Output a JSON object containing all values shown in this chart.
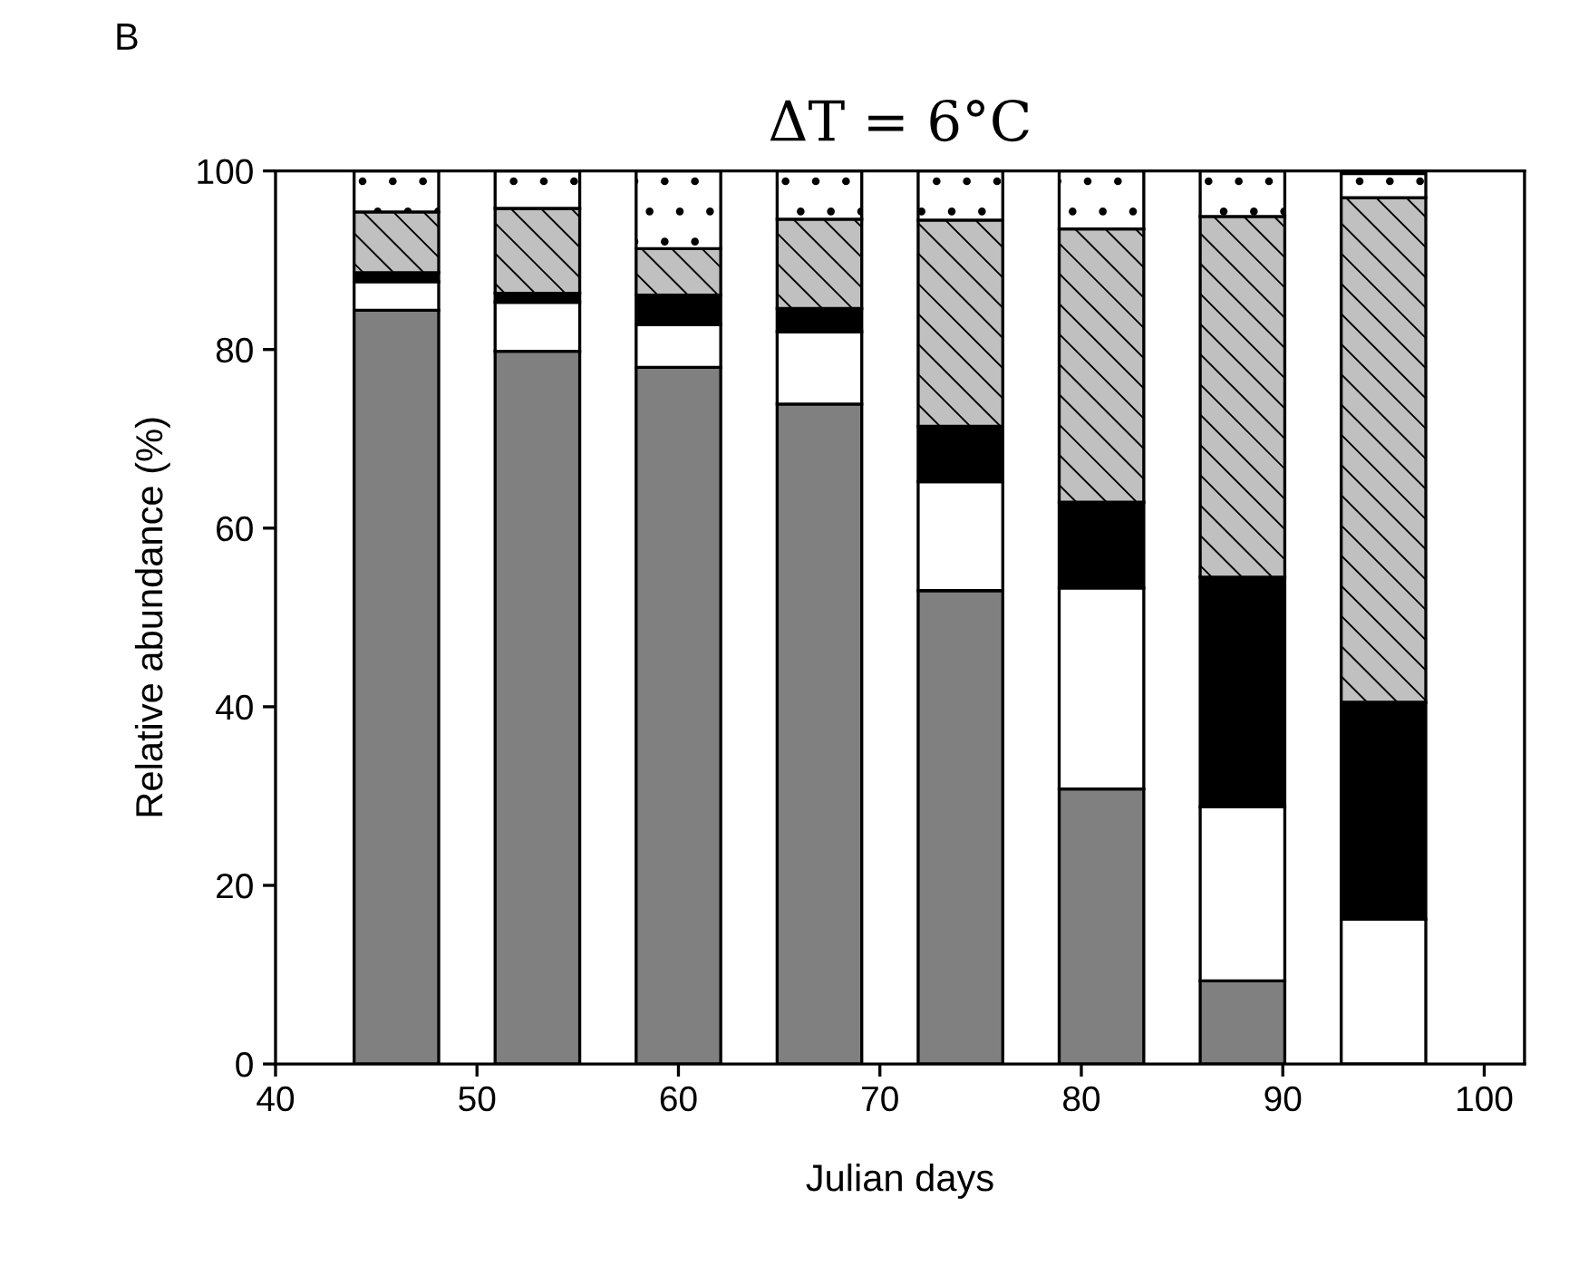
{
  "chart_data": {
    "type": "bar",
    "title": "ΔT = 6°C",
    "xlabel": "Julian days",
    "ylabel": "Relative abundance (%)",
    "annotations": [
      "B"
    ],
    "x": [
      46,
      53,
      60,
      67,
      74,
      81,
      88,
      95
    ],
    "stacked": true,
    "series": [
      {
        "color": "#808080",
        "values": [
          84.4,
          79.8,
          78.0,
          73.9,
          53.0,
          30.8,
          9.3,
          0
        ]
      },
      {
        "color": "#ffffff",
        "values": [
          3.2,
          5.5,
          4.8,
          8.1,
          12.2,
          22.5,
          19.5,
          16.2
        ]
      },
      {
        "color": "#000000",
        "values": [
          1.0,
          1.0,
          3.3,
          2.6,
          6.2,
          9.6,
          25.7,
          24.3
        ]
      },
      {
        "color": "#c0c0c0",
        "values": [
          6.8,
          9.5,
          5.2,
          10.0,
          23.1,
          30.6,
          40.4,
          56.5
        ]
      },
      {
        "color": "#ffffff",
        "values": [
          4.6,
          4.2,
          8.7,
          5.4,
          5.5,
          6.5,
          5.1,
          2.7
        ]
      }
    ],
    "xlim": [
      40,
      102
    ],
    "xticks": [
      40,
      50,
      60,
      70,
      80,
      90,
      100
    ],
    "ylim": [
      0,
      100
    ],
    "yticks": [
      0,
      20,
      40,
      60,
      80,
      100
    ],
    "grid": false,
    "legend": false
  }
}
